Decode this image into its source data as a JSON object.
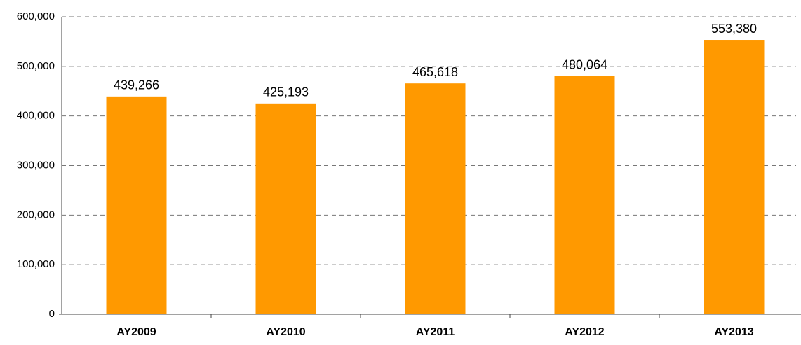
{
  "chart_data": {
    "type": "bar",
    "categories": [
      "AY2009",
      "AY2010",
      "AY2011",
      "AY2012",
      "AY2013"
    ],
    "values": [
      439266,
      425193,
      465618,
      480064,
      553380
    ],
    "value_labels": [
      "439,266",
      "425,193",
      "465,618",
      "480,064",
      "553,380"
    ],
    "color": "#ff9900",
    "ylim": [
      0,
      600000
    ],
    "yticks": [
      0,
      {
        "value": 100000,
        "label": "100,000"
      },
      {
        "value": 200000,
        "label": "200,000"
      },
      {
        "value": 300000,
        "label": "300,000"
      },
      {
        "value": 400000,
        "label": "400,000"
      },
      {
        "value": 500000,
        "label": "500,000"
      },
      {
        "value": 600000,
        "label": "600,000"
      }
    ],
    "grid": true
  }
}
